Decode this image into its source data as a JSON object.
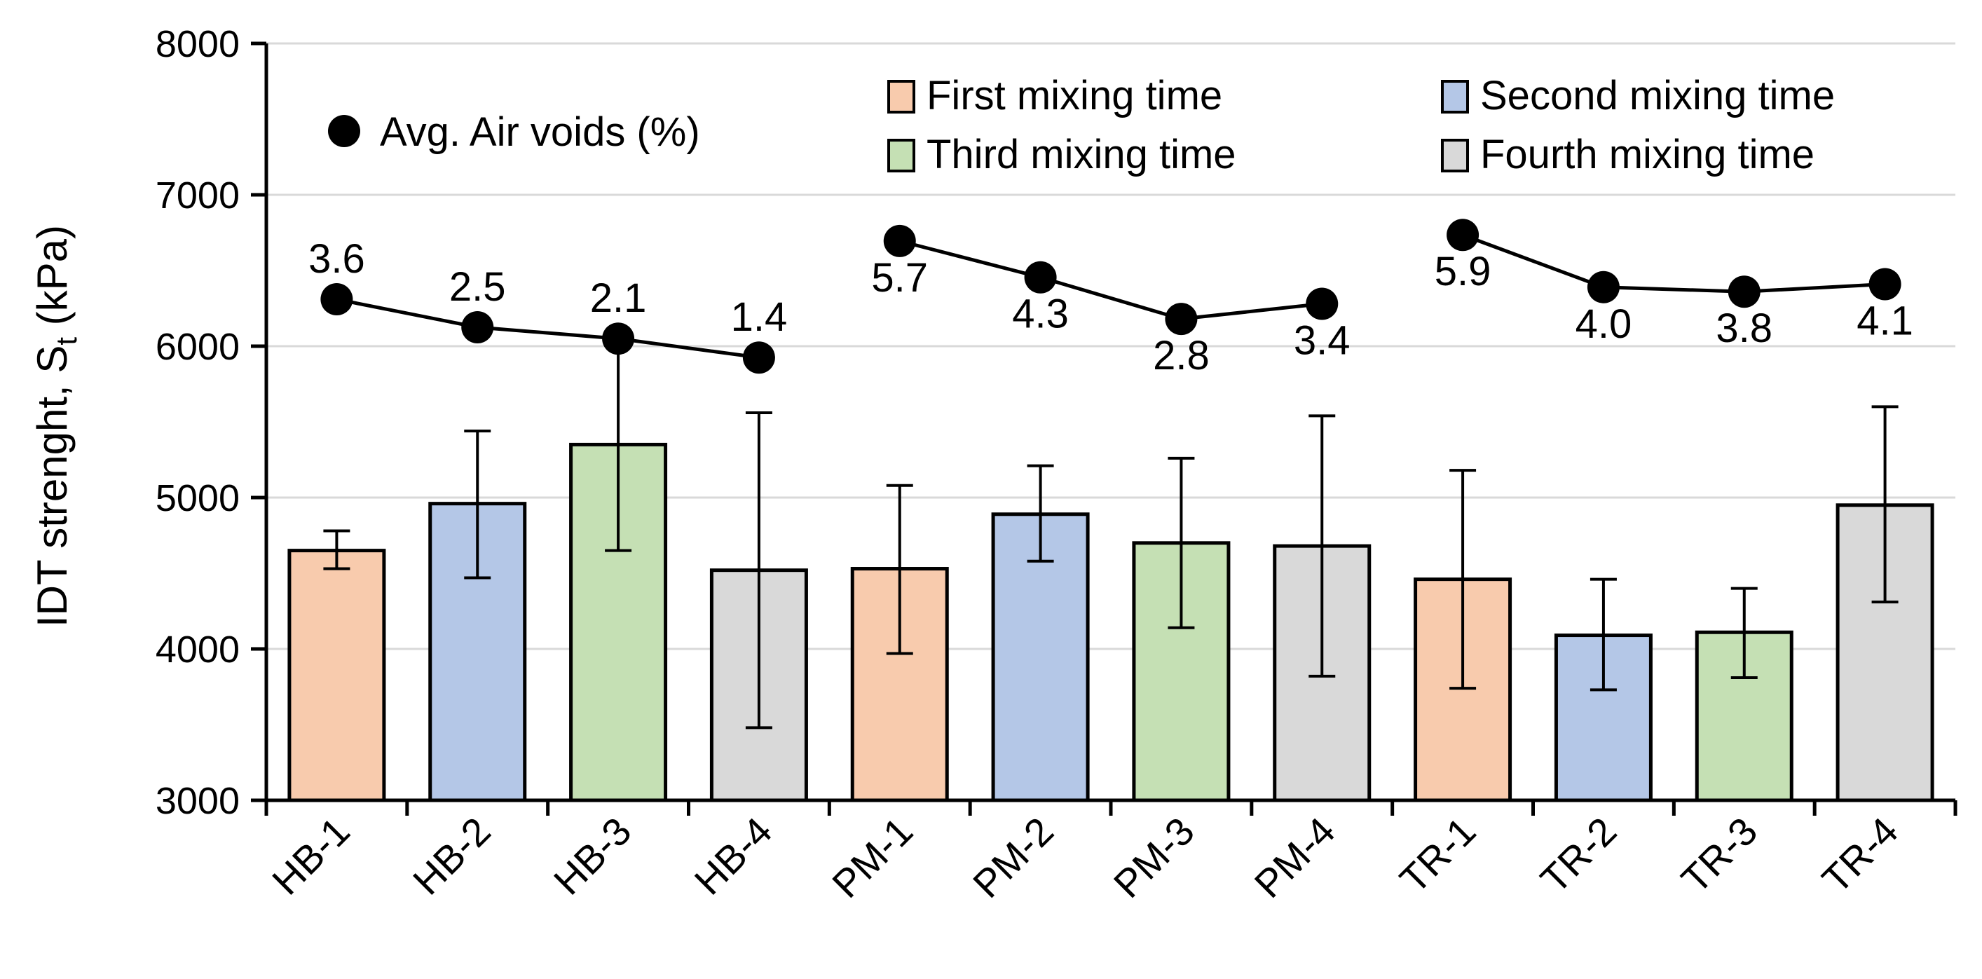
{
  "chart_data": {
    "type": "bar",
    "ylabel": "IDT strenght, S",
    "ylabel_subscript": "t",
    "ylabel_unit": " (kPa)",
    "ylim": [
      3000,
      8000
    ],
    "yticks": [
      3000,
      4000,
      5000,
      6000,
      7000,
      8000
    ],
    "ytick_labels": [
      "3000",
      "4000",
      "5000",
      "6000",
      "7000",
      "8000"
    ],
    "grid": "horizontal",
    "categories": [
      "HB-1",
      "HB-2",
      "HB-3",
      "HB-4",
      "PM-1",
      "PM-2",
      "PM-3",
      "PM-4",
      "TR-1",
      "TR-2",
      "TR-3",
      "TR-4"
    ],
    "mixing_time": [
      1,
      2,
      3,
      4,
      1,
      2,
      3,
      4,
      1,
      2,
      3,
      4
    ],
    "values": [
      4650,
      4960,
      5350,
      4520,
      4530,
      4890,
      4700,
      4680,
      4460,
      4090,
      4110,
      4950
    ],
    "error_low": [
      4530,
      4470,
      4650,
      3480,
      3970,
      4580,
      4140,
      3820,
      3740,
      3730,
      3810,
      4310
    ],
    "error_high": [
      4780,
      5440,
      6000,
      5560,
      5080,
      5210,
      5260,
      5540,
      5180,
      4460,
      4400,
      5600
    ],
    "series_colors": [
      "#F8CBAD",
      "#B4C7E7",
      "#C5E0B4",
      "#D9D9D9"
    ],
    "air_voids": {
      "name": "Avg. Air voids (%)",
      "groups": [
        [
          0,
          1,
          2,
          3
        ],
        [
          4,
          5,
          6,
          7
        ],
        [
          8,
          9,
          10,
          11
        ]
      ],
      "marker_y": [
        6310,
        6125,
        6050,
        5925,
        6695,
        6455,
        6180,
        6280,
        6735,
        6390,
        6360,
        6410
      ],
      "labels": [
        "3.6",
        "2.5",
        "2.1",
        "1.4",
        "5.7",
        "4.3",
        "2.8",
        "3.4",
        "5.9",
        "4.0",
        "3.8",
        "4.1"
      ],
      "label_position": [
        "above",
        "above",
        "above",
        "above",
        "below",
        "below",
        "below",
        "below",
        "below",
        "below",
        "below",
        "below"
      ]
    },
    "legend": {
      "placement": "top",
      "entries": [
        {
          "label": "First mixing time",
          "color": "#F8CBAD"
        },
        {
          "label": "Second mixing time",
          "color": "#B4C7E7"
        },
        {
          "label": "Third mixing time",
          "color": "#C5E0B4"
        },
        {
          "label": "Fourth mixing time",
          "color": "#D9D9D9"
        }
      ]
    }
  }
}
